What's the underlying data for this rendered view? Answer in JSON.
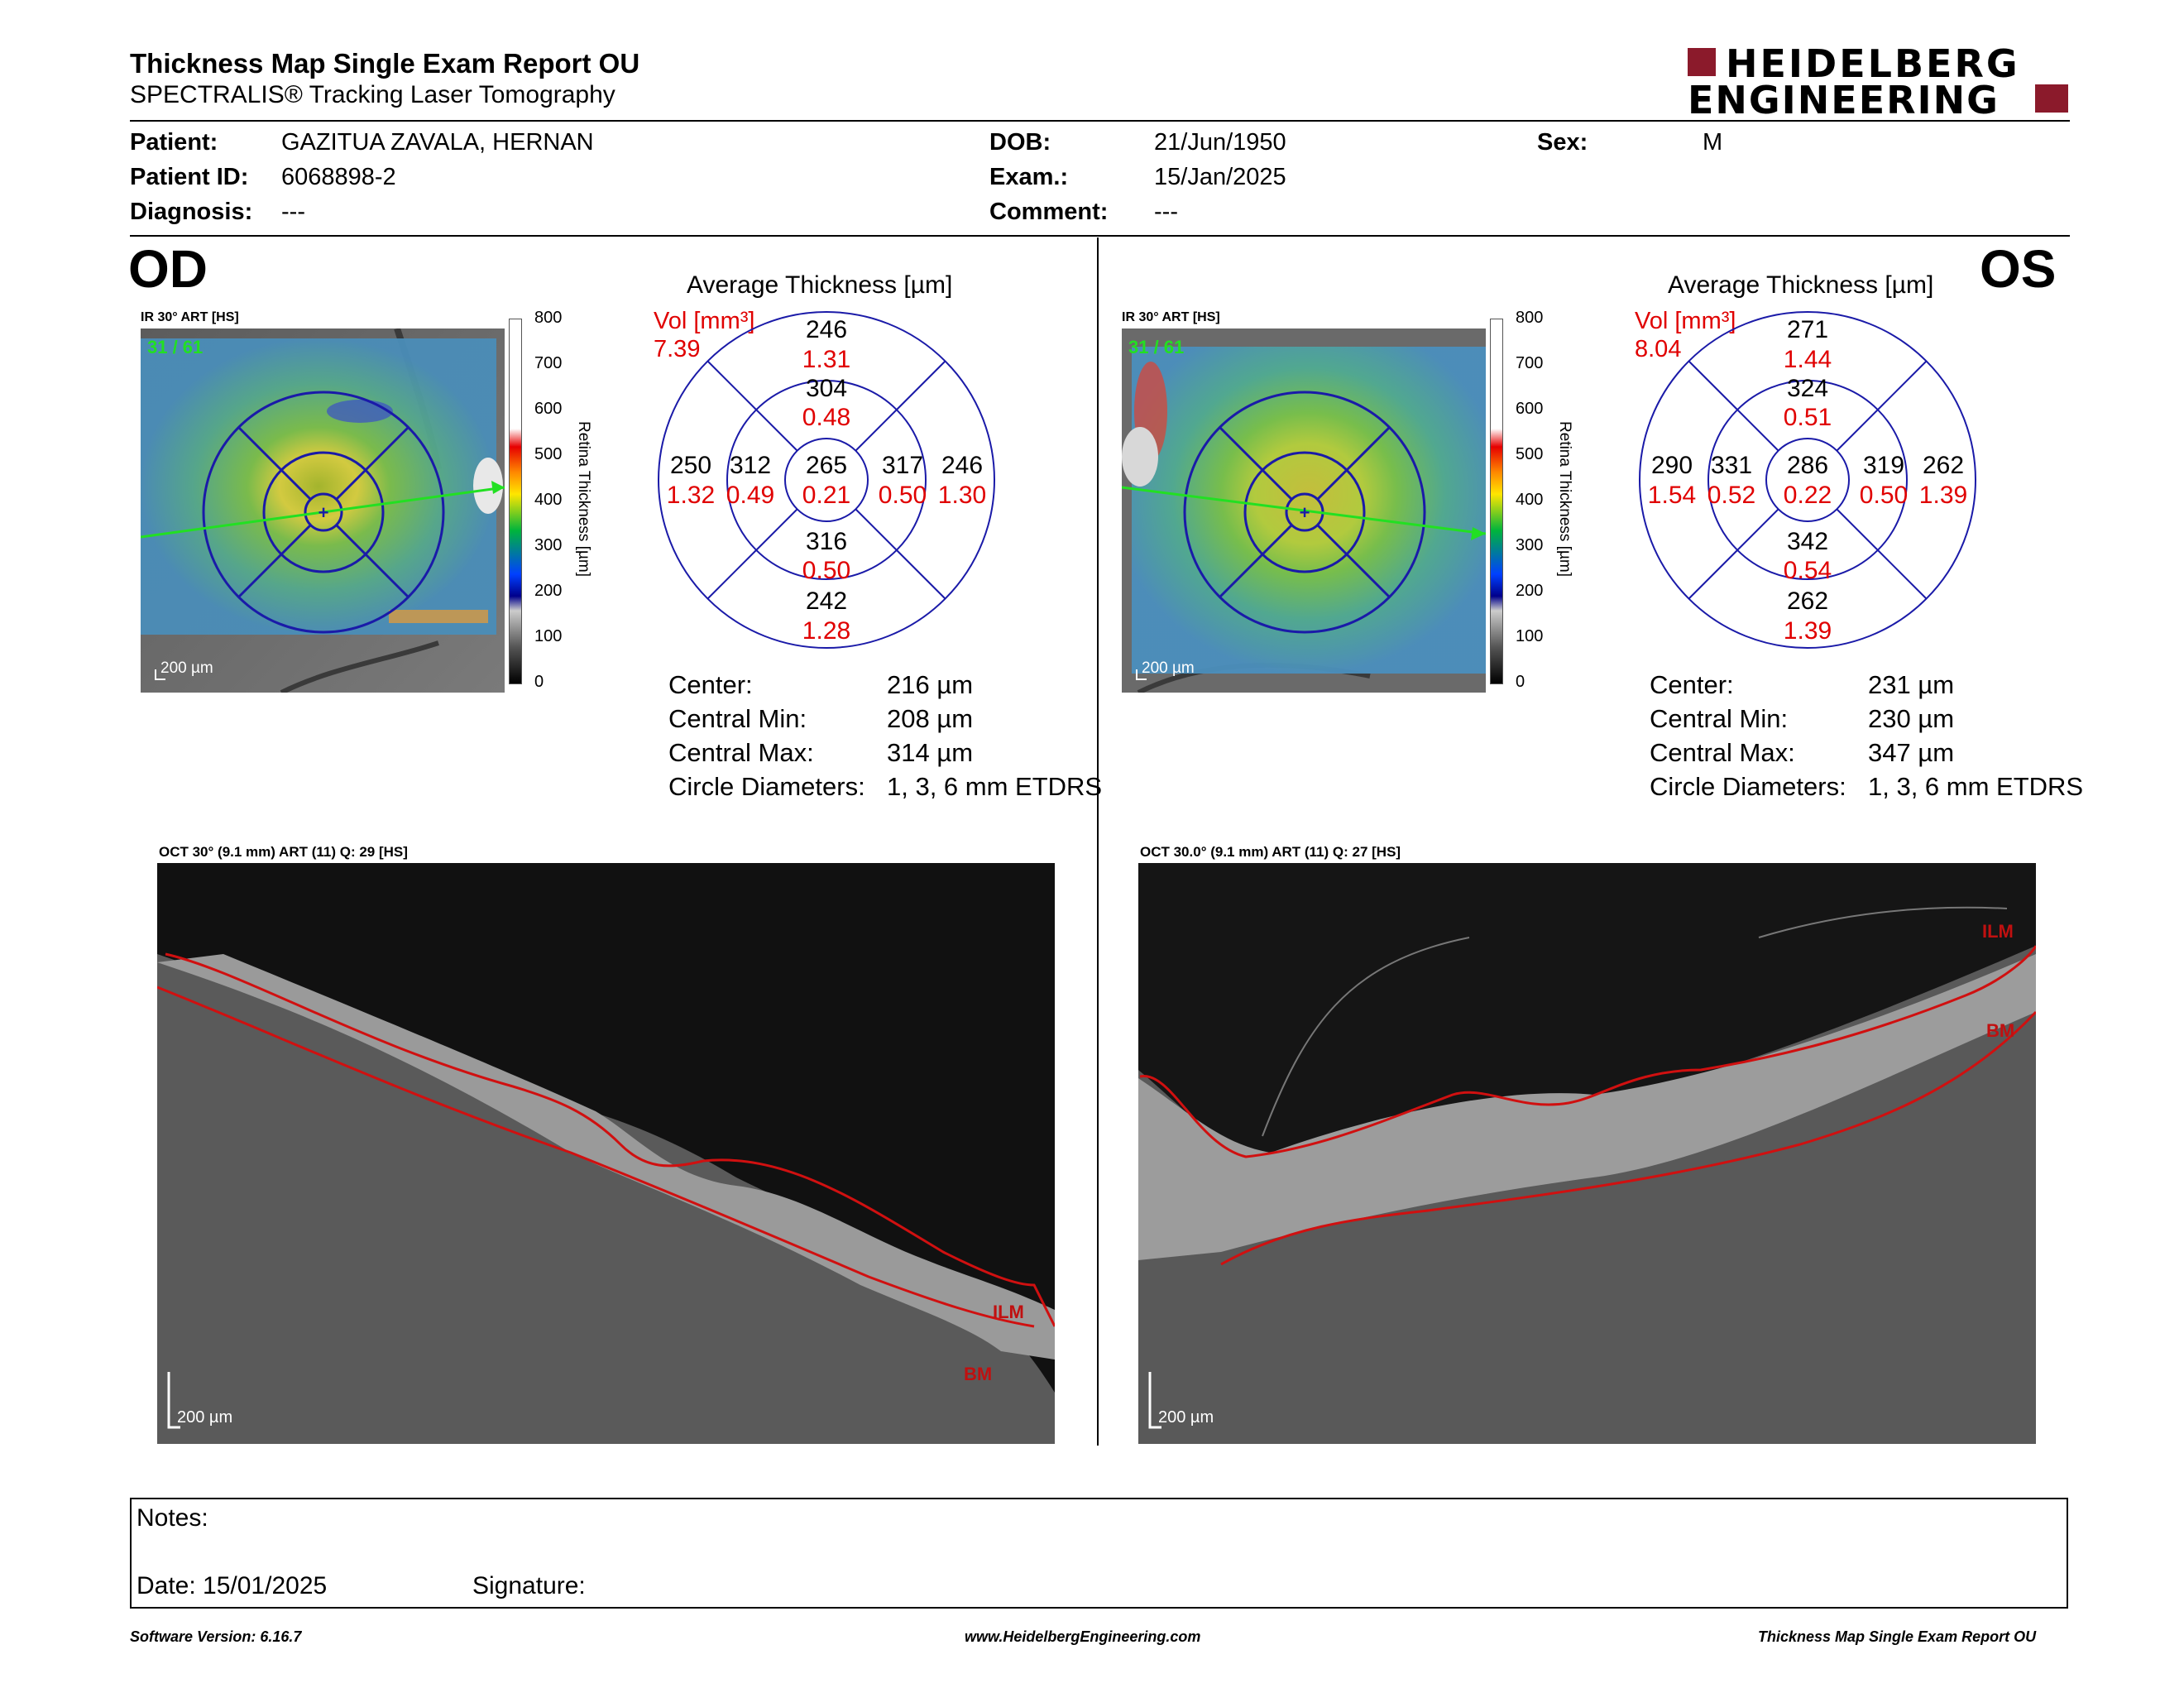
{
  "header": {
    "title": "Thickness Map Single Exam Report OU",
    "subtitle": "SPECTRALIS® Tracking Laser Tomography",
    "logo_line1": "HEIDELBERG",
    "logo_line2": "ENGINEERING"
  },
  "patient": {
    "patient_label": "Patient:",
    "patient_value": "GAZITUA ZAVALA, HERNAN",
    "id_label": "Patient ID:",
    "id_value": "6068898-2",
    "diag_label": "Diagnosis:",
    "diag_value": "---",
    "dob_label": "DOB:",
    "dob_value": "21/Jun/1950",
    "exam_label": "Exam.:",
    "exam_value": "15/Jan/2025",
    "comment_label": "Comment:",
    "comment_value": "---",
    "sex_label": "Sex:",
    "sex_value": "M"
  },
  "od": {
    "eye": "OD",
    "ir_title": "IR 30° ART [HS]",
    "frame_count": "31 / 61",
    "scale_bar": "200 µm",
    "avg_title": "Average Thickness [µm]",
    "vol_label": "Vol [mm³]",
    "vol_value": "7.39",
    "sectors": {
      "outer_top": {
        "t": "246",
        "v": "1.31"
      },
      "inner_top": {
        "t": "304",
        "v": "0.48"
      },
      "outer_left": {
        "t": "250",
        "v": "1.32"
      },
      "inner_left": {
        "t": "312",
        "v": "0.49"
      },
      "center": {
        "t": "265",
        "v": "0.21"
      },
      "inner_right": {
        "t": "317",
        "v": "0.50"
      },
      "outer_right": {
        "t": "246",
        "v": "1.30"
      },
      "inner_bottom": {
        "t": "316",
        "v": "0.50"
      },
      "outer_bottom": {
        "t": "242",
        "v": "1.28"
      }
    },
    "stats": {
      "center_label": "Center:",
      "center_value": "216 µm",
      "min_label": "Central Min:",
      "min_value": "208 µm",
      "max_label": "Central Max:",
      "max_value": "314 µm",
      "circ_label": "Circle Diameters:",
      "circ_value": "1, 3, 6 mm ETDRS"
    },
    "oct_title": "OCT 30° (9.1 mm) ART (11) Q: 29 [HS]",
    "oct_scale": "200 µm",
    "ilm": "ILM",
    "bm": "BM"
  },
  "os": {
    "eye": "OS",
    "ir_title": "IR 30° ART [HS]",
    "frame_count": "31 / 61",
    "scale_bar": "200 µm",
    "avg_title": "Average Thickness [µm]",
    "vol_label": "Vol [mm³]",
    "vol_value": "8.04",
    "sectors": {
      "outer_top": {
        "t": "271",
        "v": "1.44"
      },
      "inner_top": {
        "t": "324",
        "v": "0.51"
      },
      "outer_left": {
        "t": "290",
        "v": "1.54"
      },
      "inner_left": {
        "t": "331",
        "v": "0.52"
      },
      "center": {
        "t": "286",
        "v": "0.22"
      },
      "inner_right": {
        "t": "319",
        "v": "0.50"
      },
      "outer_right": {
        "t": "262",
        "v": "1.39"
      },
      "inner_bottom": {
        "t": "342",
        "v": "0.54"
      },
      "outer_bottom": {
        "t": "262",
        "v": "1.39"
      }
    },
    "stats": {
      "center_label": "Center:",
      "center_value": "231 µm",
      "min_label": "Central Min:",
      "min_value": "230 µm",
      "max_label": "Central Max:",
      "max_value": "347 µm",
      "circ_label": "Circle Diameters:",
      "circ_value": "1, 3, 6 mm ETDRS"
    },
    "oct_title": "OCT 30.0° (9.1 mm) ART (11) Q: 27 [HS]",
    "oct_scale": "200 µm",
    "ilm": "ILM",
    "bm": "BM"
  },
  "colorbar": {
    "ticks": [
      "800",
      "700",
      "600",
      "500",
      "400",
      "300",
      "200",
      "100",
      "0"
    ],
    "label": "Retina Thickness [µm]"
  },
  "notes": {
    "notes_label": "Notes:",
    "date_label": "Date: 15/01/2025",
    "signature_label": "Signature:"
  },
  "footer": {
    "version": "Software Version: 6.16.7",
    "url": "www.HeidelbergEngineering.com",
    "report": "Thickness Map Single Exam Report OU"
  },
  "colors": {
    "brand": "#8b1a2b",
    "grid_blue": "#1a1aa8",
    "volume_red": "#e00000"
  }
}
